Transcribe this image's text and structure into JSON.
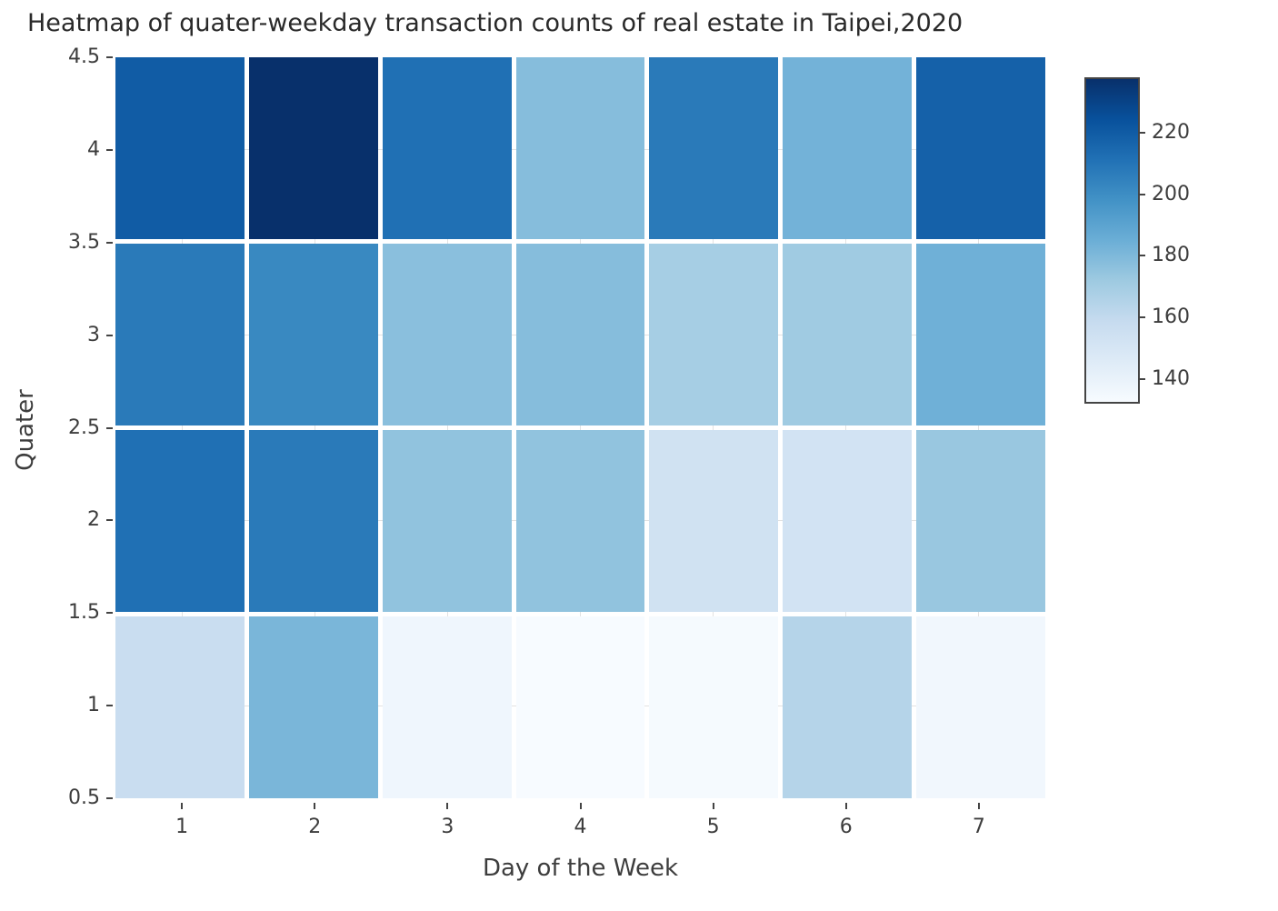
{
  "title": "Heatmap of quater-weekday transaction counts of real estate in Taipei,2020",
  "chart_data": {
    "type": "heatmap",
    "title": "Heatmap of quater-weekday transaction counts of real estate in Taipei,2020",
    "xlabel": "Day of the Week",
    "ylabel": "Quater",
    "x_categories": [
      1,
      2,
      3,
      4,
      5,
      6,
      7
    ],
    "x_tick_labels": [
      "1",
      "2",
      "3",
      "4",
      "5",
      "6",
      "7"
    ],
    "y_tick_labels": [
      "4.5",
      "4",
      "3.5",
      "3",
      "2.5",
      "2",
      "1.5",
      "1",
      "0.5"
    ],
    "xlim": [
      0.5,
      7.5
    ],
    "ylim": [
      0.5,
      4.5
    ],
    "row_order": "top-to-bottom",
    "series": [
      {
        "name": "Quarter 4",
        "quarter": 4,
        "values": [
          220,
          238,
          212,
          178,
          208,
          183,
          218
        ]
      },
      {
        "name": "Quarter 3",
        "quarter": 3,
        "values": [
          208,
          202,
          177,
          178,
          169,
          171,
          184
        ]
      },
      {
        "name": "Quarter 2",
        "quarter": 2,
        "values": [
          212,
          208,
          175,
          175,
          153,
          152,
          173
        ]
      },
      {
        "name": "Quarter 1",
        "quarter": 1,
        "values": [
          157,
          181,
          136,
          132,
          133,
          164,
          135
        ]
      }
    ],
    "color_range": [
      132,
      238
    ],
    "colorbar_ticks": [
      220,
      200,
      180,
      160,
      140
    ],
    "colorscale_name": "Blues",
    "colorscale_stops": [
      "#f7fbff",
      "#deebf7",
      "#c6dbef",
      "#9ecae1",
      "#6baed6",
      "#4292c6",
      "#2171b5",
      "#08519c",
      "#08306b"
    ],
    "grid": true,
    "legend": "colorbar-right"
  },
  "colors": {
    "background": "#ffffff",
    "title_text": "#2a2a2a",
    "axis_text": "#3d3d3d",
    "tick_mark": "#444444",
    "gridline": "#e2e2e2",
    "colorbar_border": "#444444"
  }
}
